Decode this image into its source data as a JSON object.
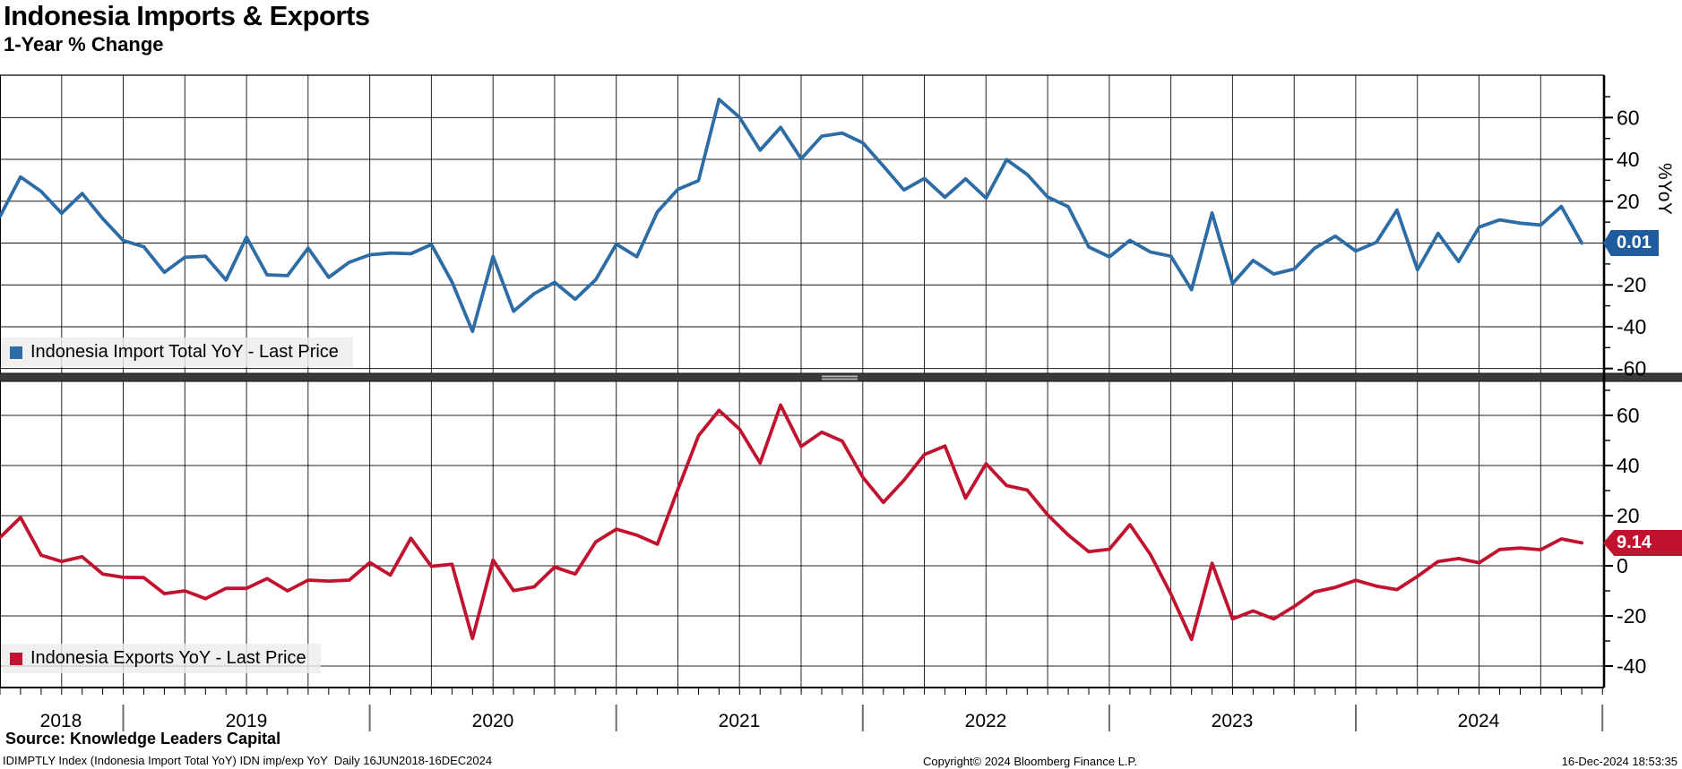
{
  "header": {
    "title": "Indonesia Imports & Exports",
    "subtitle": "1-Year % Change"
  },
  "axis": {
    "years": [
      "2018",
      "2019",
      "2020",
      "2021",
      "2022",
      "2023",
      "2024"
    ],
    "y_label": "%YoY"
  },
  "footer": {
    "source": "Source: Knowledge Leaders Capital",
    "index_line": "IDIMPTLY Index (Indonesia Import Total YoY) IDN imp/exp YoY  Daily 16JUN2018-16DEC2024",
    "copyright": "Copyright© 2024 Bloomberg Finance L.P.",
    "timestamp": "16-Dec-2024 18:53:35"
  },
  "chart_data": {
    "type": "line",
    "freq": "monthly",
    "start": "Jun 2018",
    "end": "Nov 2024",
    "x_year_labels": [
      "2018",
      "2019",
      "2020",
      "2021",
      "2022",
      "2023",
      "2024"
    ],
    "grid": "on",
    "panels": [
      {
        "name": "imports",
        "legend": "Indonesia Import Total YoY - Last Price",
        "color": "#2d6ca5",
        "badge": {
          "value": "0.01",
          "color": "#1f5c9e"
        },
        "last_price": 0.01,
        "ylim": [
          -63,
          80
        ],
        "y_major_ticks": [
          60,
          40,
          20,
          0,
          -20,
          -40,
          -60
        ],
        "y_tick_labels": [
          "60",
          "40",
          "20",
          "-20",
          "-40",
          "-60"
        ],
        "y_minor_ticks": [
          70,
          50,
          30,
          10,
          -10,
          -30,
          -50
        ],
        "values": [
          12.7,
          31.6,
          24.7,
          14.2,
          23.7,
          11.7,
          1.2,
          -1.8,
          -14.0,
          -6.8,
          -6.3,
          -17.7,
          2.8,
          -15.2,
          -15.6,
          -2.4,
          -16.4,
          -9.2,
          -5.6,
          -4.8,
          -5.1,
          -0.7,
          -18.6,
          -42.2,
          -6.4,
          -32.6,
          -24.2,
          -18.8,
          -26.9,
          -17.5,
          -0.5,
          -6.5,
          14.9,
          25.7,
          29.9,
          68.7,
          60.1,
          44.4,
          55.3,
          40.3,
          51.1,
          52.6,
          47.9,
          36.8,
          25.4,
          30.9,
          21.9,
          30.7,
          21.5,
          39.9,
          32.8,
          22.0,
          17.4,
          -1.9,
          -6.6,
          1.3,
          -4.3,
          -6.3,
          -22.3,
          14.4,
          -19.4,
          -8.3,
          -14.8,
          -12.4,
          -2.4,
          3.3,
          -3.8,
          0.4,
          15.8,
          -12.8,
          4.6,
          -8.8,
          7.6,
          11.1,
          9.5,
          8.6,
          17.5,
          0.01
        ]
      },
      {
        "name": "exports",
        "legend": "Indonesia Exports YoY - Last Price",
        "color": "#c1132f",
        "badge": {
          "value": "9.14",
          "color": "#c1132f"
        },
        "last_price": 9.14,
        "ylim": [
          -49,
          73
        ],
        "y_major_ticks": [
          60,
          40,
          20,
          0,
          -20,
          -40
        ],
        "y_tick_labels": [
          "60",
          "40",
          "20",
          "0",
          "-20",
          "-40"
        ],
        "y_minor_ticks": [
          70,
          50,
          30,
          10,
          -10,
          -30
        ],
        "values": [
          11.3,
          19.3,
          4.2,
          1.7,
          3.6,
          -3.3,
          -4.6,
          -4.7,
          -11.1,
          -10.0,
          -13.1,
          -9.0,
          -9.0,
          -5.1,
          -10.0,
          -5.7,
          -6.1,
          -5.7,
          1.3,
          -3.7,
          11.0,
          -0.2,
          0.6,
          -29.0,
          2.3,
          -9.9,
          -8.4,
          -0.5,
          -3.3,
          9.5,
          14.6,
          12.2,
          8.6,
          30.5,
          51.9,
          62.0,
          54.5,
          41.0,
          64.1,
          47.6,
          53.3,
          49.7,
          35.3,
          25.3,
          34.1,
          44.4,
          47.8,
          27.0,
          40.7,
          32.0,
          30.2,
          20.3,
          12.3,
          5.6,
          6.6,
          16.4,
          4.5,
          -11.3,
          -29.4,
          1.0,
          -21.2,
          -18.0,
          -21.2,
          -16.2,
          -10.4,
          -8.6,
          -5.8,
          -8.1,
          -9.5,
          -4.2,
          1.7,
          2.9,
          1.2,
          6.5,
          7.1,
          6.4,
          10.7,
          9.14
        ]
      }
    ]
  }
}
